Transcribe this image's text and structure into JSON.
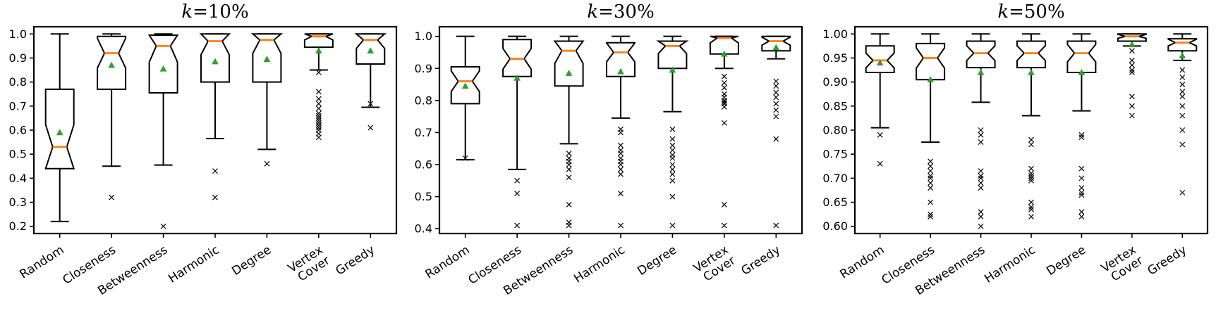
{
  "colors": {
    "median": "#ff7f0e",
    "mean": "#2ca02c",
    "line": "#000000",
    "background": "#ffffff"
  },
  "chart_data": [
    {
      "type": "boxplot",
      "title": "k=10%",
      "ylim": [
        0.17,
        1.03
      ],
      "yticks": [
        0.2,
        0.3,
        0.4,
        0.5,
        0.6,
        0.7,
        0.8,
        0.9,
        1.0
      ],
      "ytick_decimals": 1,
      "categories": [
        "Random",
        "Closeness",
        "Betweenness",
        "Harmonic",
        "Degree",
        "Vertex\nCover",
        "Greedy"
      ],
      "boxes": [
        {
          "label": "Random",
          "whislo": 0.22,
          "q1": 0.44,
          "med": 0.53,
          "q3": 0.77,
          "whishi": 1.0,
          "mean": 0.59,
          "fliers": []
        },
        {
          "label": "Closeness",
          "whislo": 0.45,
          "q1": 0.77,
          "med": 0.92,
          "q3": 0.99,
          "whishi": 1.0,
          "mean": 0.87,
          "fliers": [
            0.32
          ]
        },
        {
          "label": "Betweenness",
          "whislo": 0.455,
          "q1": 0.755,
          "med": 0.95,
          "q3": 0.995,
          "whishi": 1.0,
          "mean": 0.855,
          "fliers": [
            0.2
          ]
        },
        {
          "label": "Harmonic",
          "whislo": 0.565,
          "q1": 0.8,
          "med": 0.97,
          "q3": 1.0,
          "whishi": 1.0,
          "mean": 0.885,
          "fliers": [
            0.43,
            0.32
          ]
        },
        {
          "label": "Degree",
          "whislo": 0.52,
          "q1": 0.8,
          "med": 0.975,
          "q3": 1.0,
          "whishi": 1.0,
          "mean": 0.895,
          "fliers": [
            0.46
          ]
        },
        {
          "label": "Vertex\nCover",
          "whislo": 0.85,
          "q1": 0.945,
          "med": 0.99,
          "q3": 1.0,
          "whishi": 1.0,
          "mean": 0.93,
          "fliers": [
            0.84,
            0.76,
            0.73,
            0.71,
            0.69,
            0.67,
            0.66,
            0.65,
            0.64,
            0.63,
            0.62,
            0.61,
            0.6,
            0.585,
            0.57
          ]
        },
        {
          "label": "Greedy",
          "whislo": 0.695,
          "q1": 0.875,
          "med": 0.975,
          "q3": 1.0,
          "whishi": 1.0,
          "mean": 0.93,
          "fliers": [
            0.71,
            0.61
          ]
        }
      ]
    },
    {
      "type": "boxplot",
      "title": "k=30%",
      "ylim": [
        0.385,
        1.03
      ],
      "yticks": [
        0.4,
        0.5,
        0.6,
        0.7,
        0.8,
        0.9,
        1.0
      ],
      "ytick_decimals": 1,
      "categories": [
        "Random",
        "Closeness",
        "Betweenness",
        "Harmonic",
        "Degree",
        "Vertex\nCover",
        "Greedy"
      ],
      "boxes": [
        {
          "label": "Random",
          "whislo": 0.615,
          "q1": 0.79,
          "med": 0.86,
          "q3": 0.905,
          "whishi": 1.0,
          "mean": 0.845,
          "fliers": [
            0.62
          ]
        },
        {
          "label": "Closeness",
          "whislo": 0.585,
          "q1": 0.875,
          "med": 0.93,
          "q3": 0.99,
          "whishi": 1.0,
          "mean": 0.87,
          "fliers": [
            0.55,
            0.51,
            0.41
          ]
        },
        {
          "label": "Betweenness",
          "whislo": 0.665,
          "q1": 0.845,
          "med": 0.955,
          "q3": 0.985,
          "whishi": 1.0,
          "mean": 0.885,
          "fliers": [
            0.635,
            0.62,
            0.61,
            0.6,
            0.585,
            0.56,
            0.475,
            0.42,
            0.41
          ]
        },
        {
          "label": "Harmonic",
          "whislo": 0.745,
          "q1": 0.875,
          "med": 0.95,
          "q3": 0.98,
          "whishi": 1.0,
          "mean": 0.89,
          "fliers": [
            0.71,
            0.7,
            0.66,
            0.645,
            0.635,
            0.62,
            0.61,
            0.6,
            0.585,
            0.57,
            0.51,
            0.41
          ]
        },
        {
          "label": "Degree",
          "whislo": 0.765,
          "q1": 0.9,
          "med": 0.97,
          "q3": 0.985,
          "whishi": 1.0,
          "mean": 0.895,
          "fliers": [
            0.71,
            0.68,
            0.66,
            0.645,
            0.63,
            0.62,
            0.6,
            0.585,
            0.57,
            0.55,
            0.5,
            0.41
          ]
        },
        {
          "label": "Vertex\nCover",
          "whislo": 0.9,
          "q1": 0.945,
          "med": 0.995,
          "q3": 1.0,
          "whishi": 1.0,
          "mean": 0.945,
          "fliers": [
            0.875,
            0.855,
            0.84,
            0.82,
            0.81,
            0.8,
            0.795,
            0.79,
            0.78,
            0.73,
            0.475,
            0.41
          ]
        },
        {
          "label": "Greedy",
          "whislo": 0.93,
          "q1": 0.955,
          "med": 0.985,
          "q3": 1.0,
          "whishi": 1.0,
          "mean": 0.965,
          "fliers": [
            0.86,
            0.845,
            0.825,
            0.81,
            0.79,
            0.77,
            0.75,
            0.68,
            0.41
          ]
        }
      ]
    },
    {
      "type": "boxplot",
      "title": "k=50%",
      "ylim": [
        0.585,
        1.015
      ],
      "yticks": [
        0.6,
        0.65,
        0.7,
        0.75,
        0.8,
        0.85,
        0.9,
        0.95,
        1.0
      ],
      "ytick_decimals": 2,
      "categories": [
        "Random",
        "Closeness",
        "Betweenness",
        "Harmonic",
        "Degree",
        "Vertex\nCover",
        "Greedy"
      ],
      "boxes": [
        {
          "label": "Random",
          "whislo": 0.805,
          "q1": 0.92,
          "med": 0.945,
          "q3": 0.975,
          "whishi": 1.0,
          "mean": 0.94,
          "fliers": [
            0.79,
            0.73
          ]
        },
        {
          "label": "Closeness",
          "whislo": 0.775,
          "q1": 0.905,
          "med": 0.95,
          "q3": 0.98,
          "whishi": 1.0,
          "mean": 0.905,
          "fliers": [
            0.735,
            0.725,
            0.715,
            0.705,
            0.7,
            0.69,
            0.68,
            0.65,
            0.625,
            0.62
          ]
        },
        {
          "label": "Betweenness",
          "whislo": 0.858,
          "q1": 0.93,
          "med": 0.96,
          "q3": 0.985,
          "whishi": 1.0,
          "mean": 0.92,
          "fliers": [
            0.8,
            0.79,
            0.775,
            0.715,
            0.705,
            0.7,
            0.69,
            0.68,
            0.63,
            0.62,
            0.6
          ]
        },
        {
          "label": "Harmonic",
          "whislo": 0.83,
          "q1": 0.93,
          "med": 0.96,
          "q3": 0.985,
          "whishi": 1.0,
          "mean": 0.92,
          "fliers": [
            0.78,
            0.77,
            0.72,
            0.71,
            0.705,
            0.7,
            0.695,
            0.65,
            0.64,
            0.635,
            0.62
          ]
        },
        {
          "label": "Degree",
          "whislo": 0.84,
          "q1": 0.92,
          "med": 0.96,
          "q3": 0.985,
          "whishi": 1.0,
          "mean": 0.92,
          "fliers": [
            0.79,
            0.785,
            0.72,
            0.7,
            0.68,
            0.67,
            0.665,
            0.63,
            0.62
          ]
        },
        {
          "label": "Vertex\nCover",
          "whislo": 0.975,
          "q1": 0.985,
          "med": 0.995,
          "q3": 1.0,
          "whishi": 1.0,
          "mean": 0.978,
          "fliers": [
            0.965,
            0.945,
            0.935,
            0.925,
            0.92,
            0.87,
            0.85,
            0.83
          ]
        },
        {
          "label": "Greedy",
          "whislo": 0.945,
          "q1": 0.965,
          "med": 0.982,
          "q3": 0.99,
          "whishi": 1.0,
          "mean": 0.955,
          "fliers": [
            0.925,
            0.91,
            0.895,
            0.88,
            0.87,
            0.85,
            0.83,
            0.8,
            0.77,
            0.67
          ]
        }
      ]
    }
  ]
}
